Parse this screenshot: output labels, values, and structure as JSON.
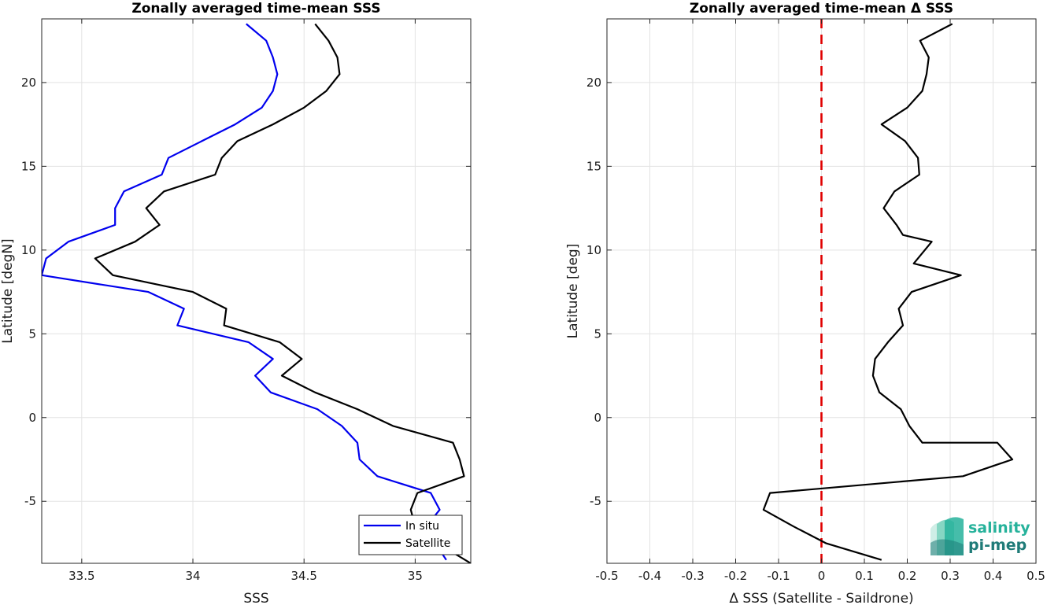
{
  "chart_data": [
    {
      "type": "line",
      "title": "Zonally averaged time-mean SSS",
      "xlabel": "SSS",
      "ylabel": "Latitude [degN]",
      "xlim": [
        33.32,
        35.25
      ],
      "ylim": [
        -8.7,
        23.8
      ],
      "xticks": [
        33.5,
        34,
        34.5,
        35
      ],
      "xtick_labels": [
        "33.5",
        "34",
        "34.5",
        "35"
      ],
      "yticks": [
        -5,
        0,
        5,
        10,
        15,
        20
      ],
      "ytick_labels": [
        "-5",
        "0",
        "5",
        "10",
        "15",
        "20"
      ],
      "grid": true,
      "legend": {
        "placement": "bottom-right",
        "entries": [
          "In situ",
          "Satellite"
        ]
      },
      "series": [
        {
          "name": "In situ",
          "color": "#0000ee",
          "points": [
            [
              34.24,
              23.5
            ],
            [
              34.33,
              22.5
            ],
            [
              34.36,
              21.5
            ],
            [
              34.38,
              20.5
            ],
            [
              34.36,
              19.5
            ],
            [
              34.31,
              18.5
            ],
            [
              34.19,
              17.5
            ],
            [
              34.04,
              16.5
            ],
            [
              33.89,
              15.5
            ],
            [
              33.86,
              14.5
            ],
            [
              33.69,
              13.5
            ],
            [
              33.65,
              12.5
            ],
            [
              33.65,
              11.5
            ],
            [
              33.44,
              10.5
            ],
            [
              33.34,
              9.5
            ],
            [
              33.32,
              8.5
            ],
            [
              33.8,
              7.5
            ],
            [
              33.96,
              6.5
            ],
            [
              33.93,
              5.5
            ],
            [
              34.25,
              4.5
            ],
            [
              34.36,
              3.5
            ],
            [
              34.28,
              2.5
            ],
            [
              34.35,
              1.5
            ],
            [
              34.56,
              0.5
            ],
            [
              34.67,
              -0.5
            ],
            [
              34.74,
              -1.5
            ],
            [
              34.75,
              -2.5
            ],
            [
              34.83,
              -3.5
            ],
            [
              35.07,
              -4.5
            ],
            [
              35.11,
              -5.5
            ],
            [
              35.05,
              -6.5
            ],
            [
              35.09,
              -7.5
            ],
            [
              35.14,
              -8.5
            ]
          ]
        },
        {
          "name": "Satellite",
          "color": "#000000",
          "points": [
            [
              34.55,
              23.5
            ],
            [
              34.61,
              22.5
            ],
            [
              34.65,
              21.5
            ],
            [
              34.66,
              20.5
            ],
            [
              34.6,
              19.5
            ],
            [
              34.5,
              18.5
            ],
            [
              34.36,
              17.5
            ],
            [
              34.2,
              16.5
            ],
            [
              34.13,
              15.5
            ],
            [
              34.1,
              14.5
            ],
            [
              33.87,
              13.5
            ],
            [
              33.79,
              12.5
            ],
            [
              33.85,
              11.5
            ],
            [
              33.74,
              10.5
            ],
            [
              33.56,
              9.5
            ],
            [
              33.64,
              8.5
            ],
            [
              34.0,
              7.5
            ],
            [
              34.15,
              6.5
            ],
            [
              34.14,
              5.5
            ],
            [
              34.39,
              4.5
            ],
            [
              34.49,
              3.5
            ],
            [
              34.4,
              2.5
            ],
            [
              34.55,
              1.5
            ],
            [
              34.74,
              0.5
            ],
            [
              34.9,
              -0.5
            ],
            [
              35.17,
              -1.5
            ],
            [
              35.2,
              -2.5
            ],
            [
              35.22,
              -3.5
            ],
            [
              35.01,
              -4.5
            ],
            [
              34.98,
              -5.5
            ],
            [
              35.0,
              -6.5
            ],
            [
              35.1,
              -7.5
            ],
            [
              35.25,
              -8.7
            ]
          ]
        }
      ]
    },
    {
      "type": "line",
      "title": "Zonally averaged time-mean Δ SSS",
      "xlabel": "Δ SSS (Satellite - Saildrone)",
      "ylabel": "Latitude [deg]",
      "xlim": [
        -0.5,
        0.5
      ],
      "ylim": [
        -8.7,
        23.8
      ],
      "xticks": [
        -0.5,
        -0.4,
        -0.3,
        -0.2,
        -0.1,
        0,
        0.1,
        0.2,
        0.3,
        0.4,
        0.5
      ],
      "xtick_labels": [
        "-0.5",
        "-0.4",
        "-0.3",
        "-0.2",
        "-0.1",
        "0",
        "0.1",
        "0.2",
        "0.3",
        "0.4",
        "0.5"
      ],
      "yticks": [
        -5,
        0,
        5,
        10,
        15,
        20
      ],
      "ytick_labels": [
        "-5",
        "0",
        "5",
        "10",
        "15",
        "20"
      ],
      "grid": true,
      "reference_line": {
        "x": 0,
        "color": "#e00000",
        "style": "dashed"
      },
      "series": [
        {
          "color": "#000000",
          "points": [
            [
              0.305,
              23.5
            ],
            [
              0.23,
              22.5
            ],
            [
              0.25,
              21.5
            ],
            [
              0.245,
              20.5
            ],
            [
              0.235,
              19.5
            ],
            [
              0.2,
              18.5
            ],
            [
              0.14,
              17.5
            ],
            [
              0.195,
              16.5
            ],
            [
              0.225,
              15.5
            ],
            [
              0.228,
              14.5
            ],
            [
              0.17,
              13.5
            ],
            [
              0.145,
              12.5
            ],
            [
              0.175,
              11.5
            ],
            [
              0.19,
              10.9
            ],
            [
              0.257,
              10.5
            ],
            [
              0.215,
              9.2
            ],
            [
              0.325,
              8.5
            ],
            [
              0.21,
              7.5
            ],
            [
              0.18,
              6.5
            ],
            [
              0.19,
              5.5
            ],
            [
              0.155,
              4.5
            ],
            [
              0.125,
              3.5
            ],
            [
              0.12,
              2.5
            ],
            [
              0.135,
              1.5
            ],
            [
              0.185,
              0.5
            ],
            [
              0.205,
              -0.5
            ],
            [
              0.235,
              -1.5
            ],
            [
              0.41,
              -1.5
            ],
            [
              0.445,
              -2.5
            ],
            [
              0.33,
              -3.5
            ],
            [
              -0.12,
              -4.5
            ],
            [
              -0.135,
              -5.5
            ],
            [
              -0.065,
              -6.5
            ],
            [
              0.01,
              -7.5
            ],
            [
              0.14,
              -8.5
            ]
          ]
        }
      ]
    }
  ],
  "logo": {
    "line1": "salinity",
    "line2": "pi-mep",
    "colors": [
      "#26b29b",
      "#1f7b78"
    ]
  }
}
